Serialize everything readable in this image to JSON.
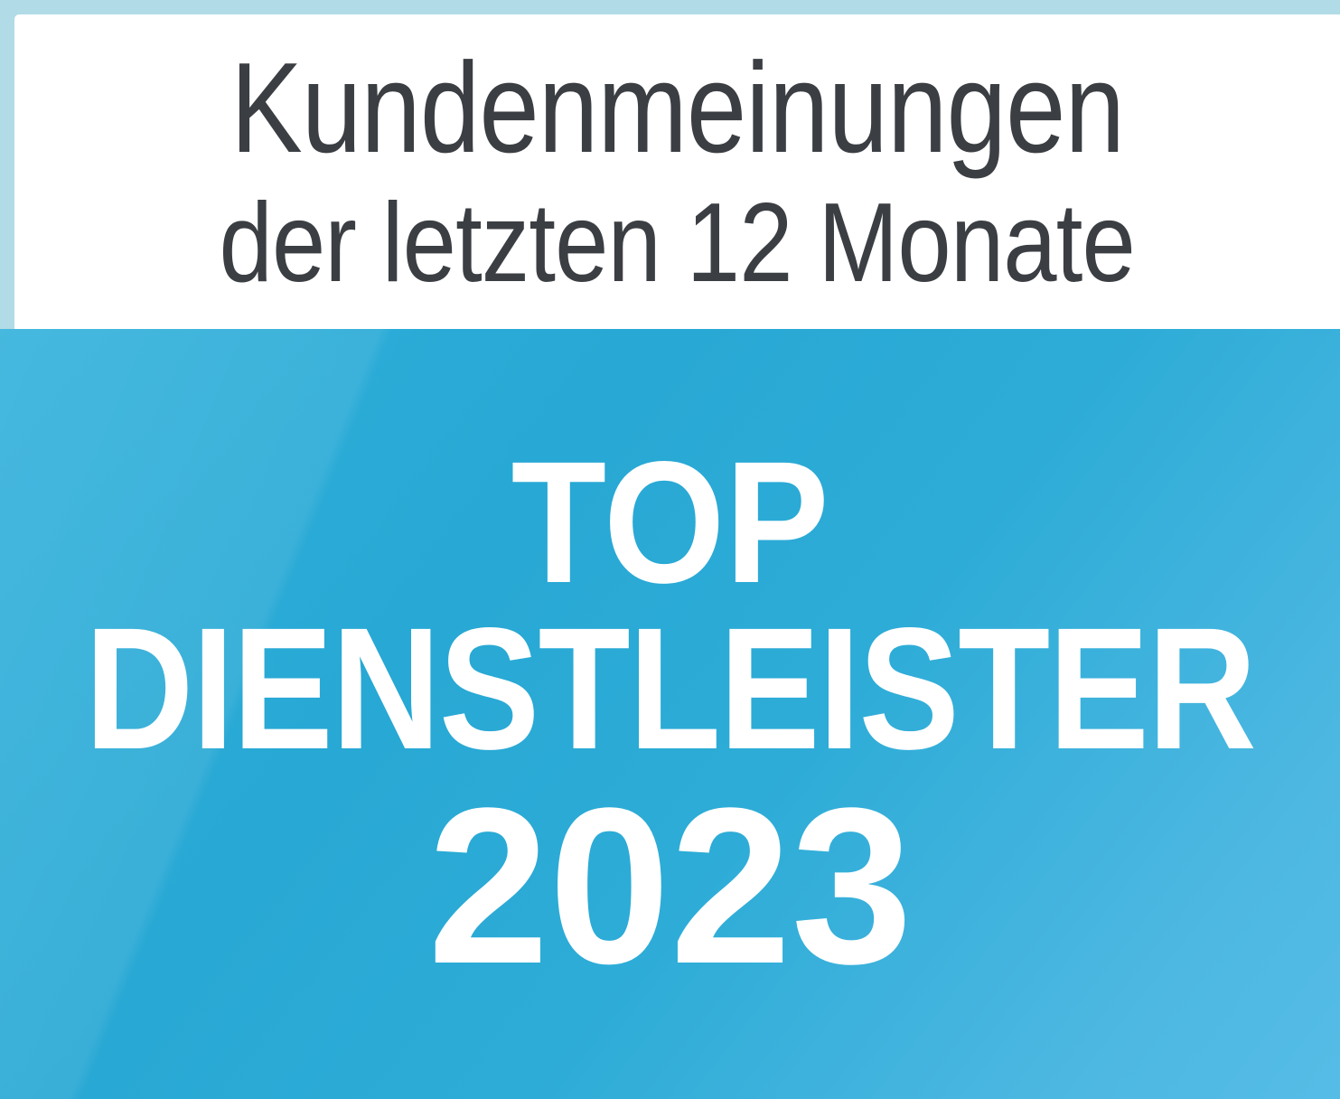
{
  "badge": {
    "header": {
      "line1": "Kundenmeinungen",
      "line2": "der letzten 12 Monate"
    },
    "award": {
      "line1": "TOP",
      "line2": "DIENSTLEISTER",
      "year": "2023"
    },
    "colors": {
      "frame_light_blue": "#b1dbe6",
      "header_panel_white": "#ffffff",
      "header_text_gray": "#3b3e42",
      "field_blue_main": "#29aad5",
      "field_blue_light": "#55bce6",
      "award_text_white": "#ffffff"
    }
  }
}
